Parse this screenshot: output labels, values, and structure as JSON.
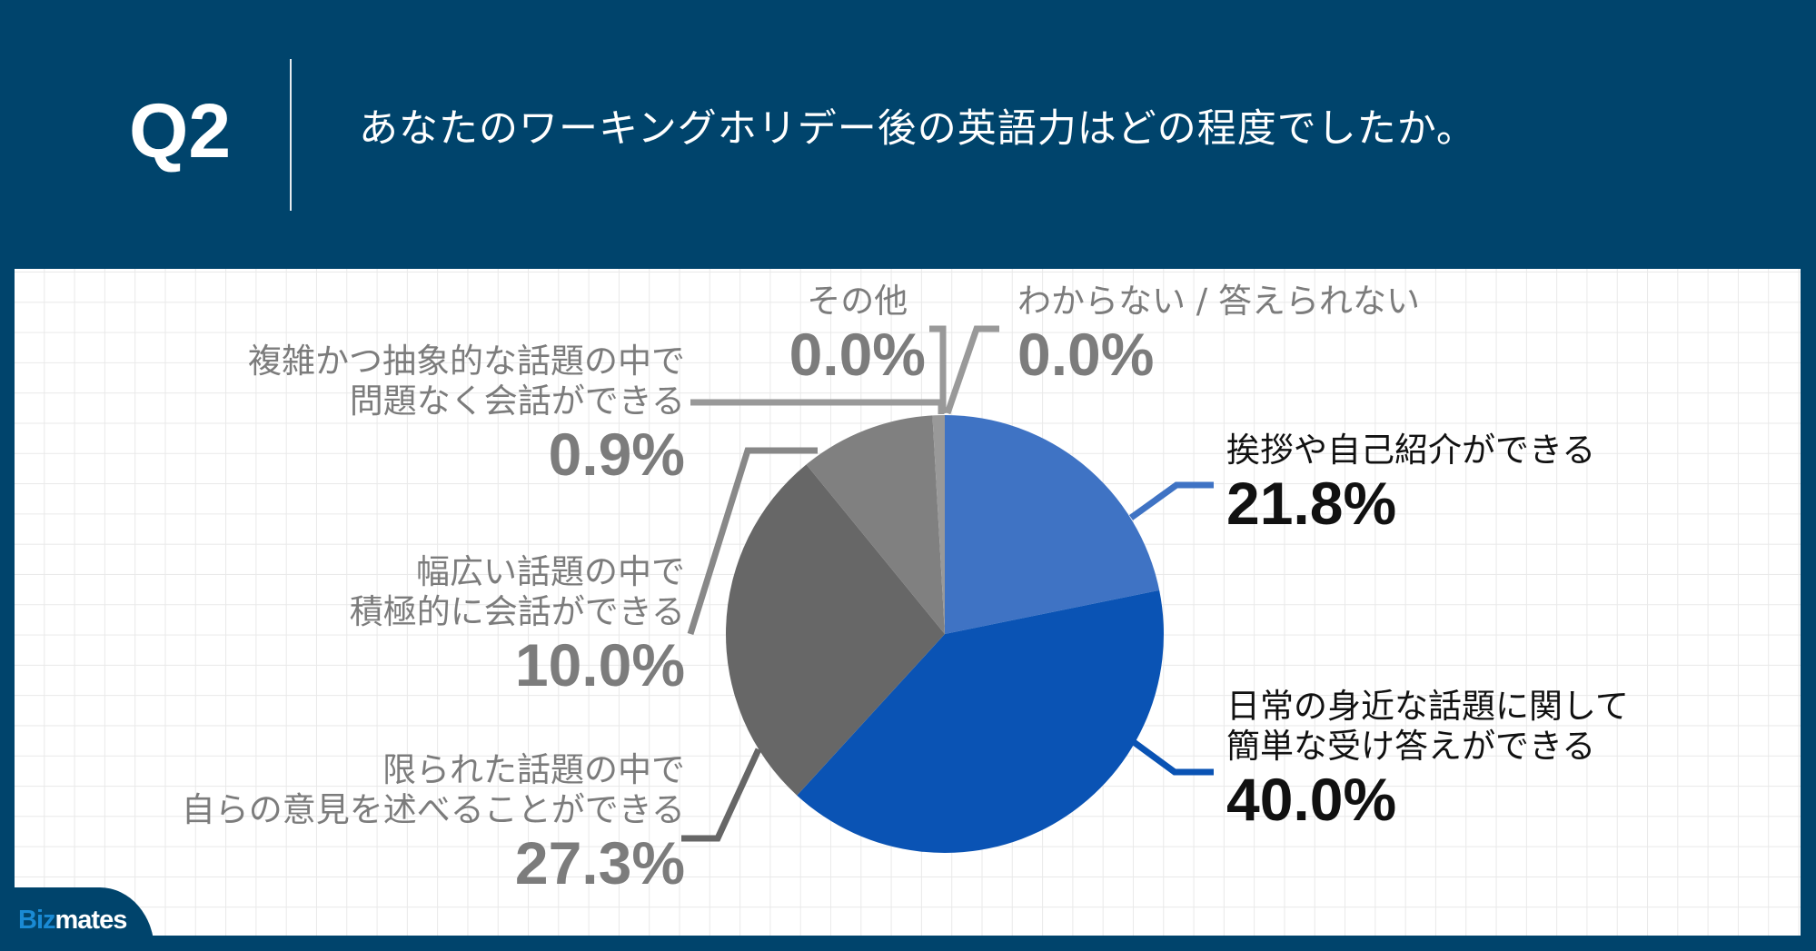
{
  "header": {
    "question_number": "Q2",
    "question_text": "あなたのワーキングホリデー後の英語力はどの程度でしたか。"
  },
  "colors": {
    "background": "#00446c",
    "slice_1": "#3f73c4",
    "slice_2": "#0a53b4",
    "slice_3": "#676767",
    "slice_4": "#808080",
    "slice_5": "#999999",
    "logo_biz": "#1a8ad4"
  },
  "labels": {
    "l1": {
      "cat": "挨拶や自己紹介ができる",
      "pct": "21.8%"
    },
    "l2": {
      "cat1": "日常の身近な話題に関して",
      "cat2": "簡単な受け答えができる",
      "pct": "40.0%"
    },
    "l3": {
      "cat1": "限られた話題の中で",
      "cat2": "自らの意見を述べることができる",
      "pct": "27.3%"
    },
    "l4": {
      "cat1": "幅広い話題の中で",
      "cat2": "積極的に会話ができる",
      "pct": "10.0%"
    },
    "l5": {
      "cat1": "複雑かつ抽象的な話題の中で",
      "cat2": "問題なく会話ができる",
      "pct": "0.9%"
    },
    "l6": {
      "cat": "その他",
      "pct": "0.0%"
    },
    "l7": {
      "cat": "わからない / 答えられない",
      "pct": "0.0%"
    }
  },
  "logo": {
    "biz": "Biz",
    "mates": "mates"
  },
  "chart_data": {
    "type": "pie",
    "title": "あなたのワーキングホリデー後の英語力はどの程度でしたか。",
    "categories": [
      "挨拶や自己紹介ができる",
      "日常の身近な話題に関して簡単な受け答えができる",
      "限られた話題の中で自らの意見を述べることができる",
      "幅広い話題の中で積極的に会話ができる",
      "複雑かつ抽象的な話題の中で問題なく会話ができる",
      "その他",
      "わからない / 答えられない"
    ],
    "values": [
      21.8,
      40.0,
      27.3,
      10.0,
      0.9,
      0.0,
      0.0
    ],
    "unit": "%",
    "start_angle": "12 o'clock",
    "direction": "clockwise",
    "legend": "none (direct labels with leader lines)"
  }
}
